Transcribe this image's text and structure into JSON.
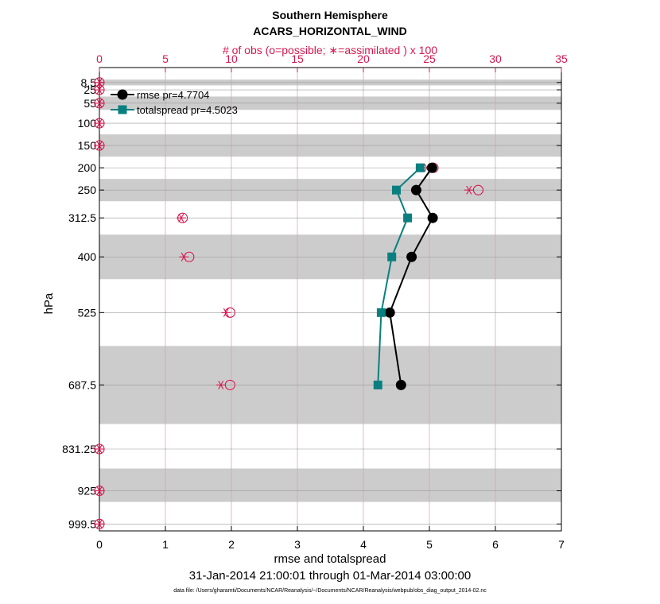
{
  "chart_data": {
    "type": "line",
    "title": "Southern Hemisphere",
    "subtitle": "ACARS_HORIZONTAL_WIND",
    "top_axis_label": "# of obs (o=possible; ∗=assimilated ) x 100",
    "xlabel": "rmse and totalspread",
    "ylabel": "hPa",
    "date_range": "31-Jan-2014 21:00:01 through 01-Mar-2014 03:00:00",
    "footnote": "data file: /Users/gharamti/Documents/NCAR/Reanalysis/~/Documents/NCAR/Reanalysis/webpub/obs_diag_output_2014-02.nc",
    "xlim": [
      0,
      7
    ],
    "x_ticks": [
      "0",
      "1",
      "2",
      "3",
      "4",
      "5",
      "6",
      "7"
    ],
    "top_xlim": [
      0,
      35
    ],
    "top_ticks": [
      "0",
      "5",
      "10",
      "15",
      "20",
      "25",
      "30",
      "35"
    ],
    "ylim_hpa": [
      1015,
      -25
    ],
    "levels": [
      8.5,
      25,
      55,
      100,
      150,
      200,
      250,
      312.5,
      400,
      525,
      687.5,
      831.25,
      925,
      999.5
    ],
    "level_labels": [
      "8.5",
      "25",
      "55",
      "100",
      "150",
      "200",
      "250",
      "312.5",
      "400",
      "525",
      "687.5",
      "831.25",
      "925",
      "999.5"
    ],
    "shaded_bands_hpa": [
      [
        2,
        15
      ],
      [
        40,
        70
      ],
      [
        125,
        175
      ],
      [
        225,
        275
      ],
      [
        350,
        450
      ],
      [
        600,
        775
      ],
      [
        875,
        950
      ]
    ],
    "series": [
      {
        "name": "rmse",
        "label": "rmse pr=4.7704",
        "color": "#000000",
        "marker": "circle",
        "levels": [
          200,
          250,
          312.5,
          400,
          525,
          687.5
        ],
        "values": [
          5.04,
          4.8,
          5.05,
          4.73,
          4.4,
          4.57
        ]
      },
      {
        "name": "totalspread",
        "label": "totalspread pr=4.5023",
        "color": "#0a7f7f",
        "marker": "square",
        "levels": [
          200,
          250,
          312.5,
          400,
          525,
          687.5
        ],
        "values": [
          4.86,
          4.5,
          4.67,
          4.43,
          4.27,
          4.22
        ]
      }
    ],
    "obs_possible_x100": {
      "levels": [
        8.5,
        25,
        55,
        100,
        150,
        200,
        250,
        312.5,
        400,
        525,
        687.5,
        831.25,
        925,
        999.5
      ],
      "values": [
        0,
        0,
        0,
        0,
        0,
        25.3,
        28.7,
        6.3,
        6.8,
        9.9,
        9.9,
        0,
        0,
        0
      ]
    },
    "obs_assimilated_x100": {
      "levels": [
        8.5,
        25,
        55,
        100,
        150,
        200,
        250,
        312.5,
        400,
        525,
        687.5,
        831.25,
        925,
        999.5
      ],
      "values": [
        0,
        0,
        0,
        0,
        0,
        24.8,
        28.0,
        6.2,
        6.4,
        9.6,
        9.2,
        0,
        0,
        0
      ]
    },
    "colors": {
      "obs": "#d6184f",
      "band": "#cccccc",
      "grid": "#d4a6b4",
      "axis": "#000000"
    }
  }
}
